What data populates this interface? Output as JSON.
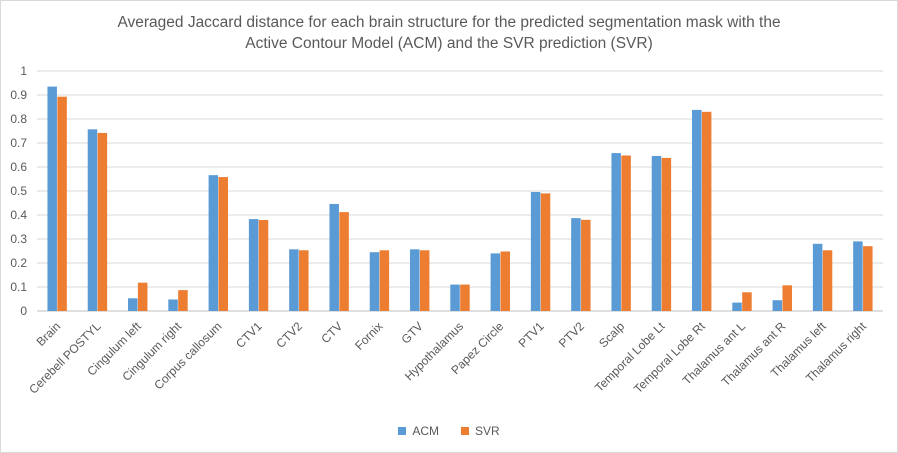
{
  "chart_data": {
    "type": "bar",
    "title_lines": [
      "Averaged Jaccard distance for each brain structure for the predicted segmentation mask with the",
      "Active Contour Model (ACM) and the SVR prediction (SVR)"
    ],
    "xlabel": "",
    "ylabel": "",
    "ylim": [
      0,
      1
    ],
    "yticks": [
      "0",
      "0.1",
      "0.2",
      "0.3",
      "0.4",
      "0.5",
      "0.6",
      "0.7",
      "0.8",
      "0.9",
      "1"
    ],
    "grid": true,
    "legend_position": "bottom",
    "categories": [
      "Brain",
      "Cerebell POSTYL",
      "Cingulum left",
      "Cingulum right",
      "Corpus callosum",
      "CTV1",
      "CTV2",
      "CTV",
      "Fornix",
      "GTV",
      "Hypothalamus",
      "Papez Circle",
      "PTV1",
      "PTV2",
      "Scalp",
      "Temporal Lobe Lt",
      "Temporal Lobe Rt",
      "Thalamus ant L",
      "Thalamus ant R",
      "Thalamus left",
      "Thalamus right"
    ],
    "series": [
      {
        "name": "ACM",
        "color": "#5b9bd5",
        "values": [
          0.935,
          0.757,
          0.053,
          0.048,
          0.566,
          0.383,
          0.257,
          0.446,
          0.245,
          0.257,
          0.11,
          0.24,
          0.496,
          0.387,
          0.658,
          0.646,
          0.838,
          0.035,
          0.045,
          0.28,
          0.29
        ]
      },
      {
        "name": "SVR",
        "color": "#ed7d31",
        "values": [
          0.893,
          0.742,
          0.118,
          0.087,
          0.558,
          0.379,
          0.253,
          0.412,
          0.253,
          0.253,
          0.11,
          0.248,
          0.49,
          0.38,
          0.648,
          0.638,
          0.83,
          0.078,
          0.107,
          0.253,
          0.27
        ]
      }
    ]
  }
}
